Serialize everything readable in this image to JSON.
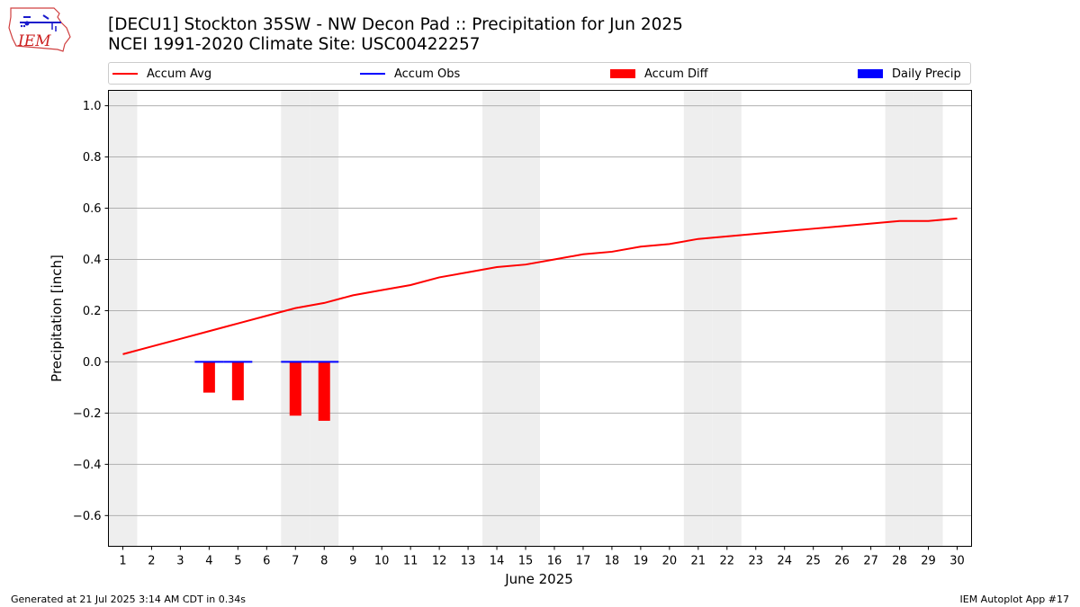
{
  "header": {
    "title_line1": "[DECU1] Stockton 35SW - NW Decon Pad :: Precipitation for Jun 2025",
    "title_line2": "NCEI 1991-2020 Climate Site: USC00422257",
    "logo_text": "IEM"
  },
  "footer": {
    "generated": "Generated at 21 Jul 2025 3:14 AM CDT in 0.34s",
    "app": "IEM Autoplot App #17"
  },
  "colors": {
    "avg": "#ff0000",
    "obs": "#0000ff",
    "diff": "#ff0000",
    "daily": "#0000ff",
    "weekend_band": "#eeeeee",
    "grid": "#b0b0b0"
  },
  "chart_data": {
    "type": "line",
    "xlabel": "June 2025",
    "ylabel": "Precipitation [inch]",
    "xlim": [
      0.5,
      30.5
    ],
    "ylim": [
      -0.72,
      1.06
    ],
    "yticks": [
      -0.6,
      -0.4,
      -0.2,
      0.0,
      0.2,
      0.4,
      0.6,
      0.8,
      1.0
    ],
    "ytick_labels": [
      "−0.6",
      "−0.4",
      "−0.2",
      "0.0",
      "0.2",
      "0.4",
      "0.6",
      "0.8",
      "1.0"
    ],
    "x": [
      1,
      2,
      3,
      4,
      5,
      6,
      7,
      8,
      9,
      10,
      11,
      12,
      13,
      14,
      15,
      16,
      17,
      18,
      19,
      20,
      21,
      22,
      23,
      24,
      25,
      26,
      27,
      28,
      29,
      30
    ],
    "xtick_labels": [
      "1",
      "2",
      "3",
      "4",
      "5",
      "6",
      "7",
      "8",
      "9",
      "10",
      "11",
      "12",
      "13",
      "14",
      "15",
      "16",
      "17",
      "18",
      "19",
      "20",
      "21",
      "22",
      "23",
      "24",
      "25",
      "26",
      "27",
      "28",
      "29",
      "30"
    ],
    "shaded_days": [
      1,
      7,
      8,
      14,
      15,
      21,
      22,
      28,
      29
    ],
    "grid": "y",
    "legend_placement": "top",
    "legend": [
      "Accum Avg",
      "Accum Obs",
      "Accum Diff",
      "Daily Precip"
    ],
    "series": [
      {
        "name": "Accum Avg",
        "type": "line",
        "x": [
          1,
          2,
          3,
          4,
          5,
          6,
          7,
          8,
          9,
          10,
          11,
          12,
          13,
          14,
          15,
          16,
          17,
          18,
          19,
          20,
          21,
          22,
          23,
          24,
          25,
          26,
          27,
          28,
          29,
          30
        ],
        "values": [
          0.03,
          0.06,
          0.09,
          0.12,
          0.15,
          0.18,
          0.21,
          0.23,
          0.26,
          0.28,
          0.3,
          0.33,
          0.35,
          0.37,
          0.38,
          0.4,
          0.42,
          0.43,
          0.45,
          0.46,
          0.48,
          0.49,
          0.5,
          0.51,
          0.52,
          0.53,
          0.54,
          0.55,
          0.55,
          0.56
        ]
      },
      {
        "name": "Accum Obs",
        "type": "line",
        "x": [
          4,
          5,
          7,
          8
        ],
        "values": [
          0.0,
          0.0,
          0.0,
          0.0
        ]
      },
      {
        "name": "Accum Diff",
        "type": "bar",
        "x": [
          4,
          5,
          7,
          8
        ],
        "values": [
          -0.12,
          -0.15,
          -0.21,
          -0.23
        ]
      },
      {
        "name": "Daily Precip",
        "type": "bar",
        "x": [],
        "values": []
      }
    ]
  }
}
